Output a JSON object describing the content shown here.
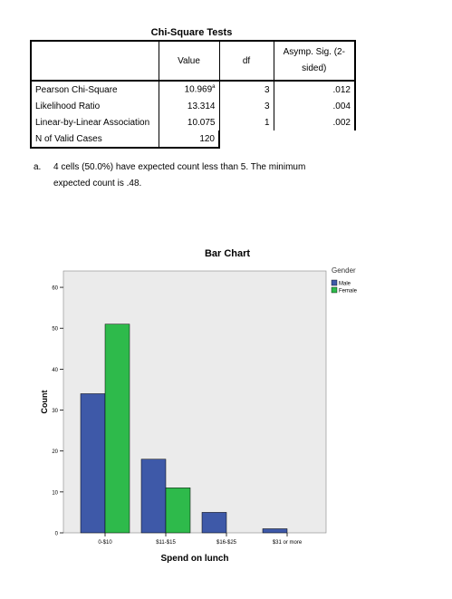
{
  "table": {
    "title": "Chi-Square Tests",
    "headers": {
      "value": "Value",
      "df": "df",
      "sig": "Asymp. Sig. (2-sided)"
    },
    "rows": [
      {
        "label": "Pearson Chi-Square",
        "value": "10.969",
        "footnote": "a",
        "df": "3",
        "sig": ".012"
      },
      {
        "label": "Likelihood Ratio",
        "value": "13.314",
        "footnote": "",
        "df": "3",
        "sig": ".004"
      },
      {
        "label": "Linear-by-Linear Association",
        "value": "10.075",
        "footnote": "",
        "df": "1",
        "sig": ".002"
      },
      {
        "label": "N of Valid Cases",
        "value": "120",
        "footnote": "",
        "df": "",
        "sig": ""
      }
    ],
    "note_marker": "a.",
    "note_line1": "4 cells (50.0%) have expected count less than 5. The minimum",
    "note_line2": "expected count is .48."
  },
  "chart_data": {
    "type": "bar",
    "title": "Bar Chart",
    "xlabel": "Spend on lunch",
    "ylabel": "Count",
    "categories": [
      "0-$10",
      "$11-$15",
      "$16-$25",
      "$31 or more"
    ],
    "series": [
      {
        "name": "Male",
        "values": [
          34,
          18,
          5,
          1
        ],
        "color": "#3E59A8"
      },
      {
        "name": "Female",
        "values": [
          51,
          11,
          0,
          0
        ],
        "color": "#2EBA4B"
      }
    ],
    "yticks": [
      0,
      10,
      20,
      30,
      40,
      50,
      60
    ],
    "ylim": [
      0,
      64
    ],
    "legend_title": "Gender",
    "legend_position": "top-right",
    "background": "#EBEBEB",
    "grid": false
  }
}
